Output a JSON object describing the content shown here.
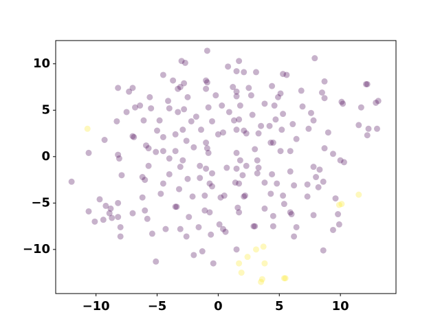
{
  "chart_data": {
    "type": "scatter",
    "xlim": [
      -13.3,
      14.55
    ],
    "ylim": [
      -14.75,
      12.5
    ],
    "xticks": [
      {
        "value": -10,
        "label": "−10"
      },
      {
        "value": -5,
        "label": "−5"
      },
      0,
      5,
      10
    ],
    "yticks": [
      {
        "value": -10,
        "label": "−10"
      },
      {
        "value": -5,
        "label": "−5"
      },
      0,
      5,
      10
    ],
    "grid": false,
    "alpha": 0.3,
    "series": [
      {
        "color": "#440154",
        "x": [
          -0.9,
          1.7,
          0.8,
          -3.0,
          -2.7,
          7.9,
          1.5,
          2.1,
          3.1,
          5.3,
          5.6,
          -4.5,
          -1.0,
          -3.7,
          8.7,
          -8.2,
          -7.0,
          -7.3,
          -2.8,
          -3.3,
          -0.9,
          -1.0,
          1.2,
          1.5,
          2.5,
          4.4,
          6.8,
          8.5,
          -5.6,
          -4.1,
          -2.5,
          -0.2,
          1.5,
          2.7,
          5.1,
          4.9,
          10.1,
          10.2,
          13.1,
          12.9,
          8.7,
          12.2,
          12.1,
          -3.1,
          -6.4,
          -6.8,
          -5.5,
          -4.0,
          -2.8,
          -3.3,
          -0.8,
          0.3,
          1.8,
          3.8,
          4.6,
          6.9,
          11.7,
          -7.5,
          -1.8,
          0.9,
          2.8,
          5.3,
          7.6,
          -8.3,
          -6.1,
          -4.8,
          -2.2,
          -0.5,
          1.3,
          1.7,
          4.7,
          7.8,
          11.5,
          -9.3,
          -7.0,
          -6.9,
          -5.0,
          -3.5,
          -2.9,
          -1.4,
          0.0,
          0.4,
          1.5,
          2.1,
          2.3,
          3.5,
          4.2,
          5.2,
          6.1,
          7.4,
          12.3,
          13.0,
          12.2,
          -4.5,
          -2.6,
          -1.0,
          3.3,
          4.3,
          4.5,
          6.4,
          9.0,
          -5.9,
          -10.6,
          -8.2,
          -8.1,
          -5.7,
          -5.1,
          -4.5,
          -3.5,
          -2.0,
          -0.9,
          1.5,
          3.0,
          5.1,
          5.9,
          8.7,
          9.4,
          10.0,
          10.3,
          -0.8,
          -4.0,
          -2.9,
          1.8,
          3.2,
          -5.7,
          -3.1,
          -1.5,
          -1.0,
          0.7,
          1.5,
          2.3,
          3.3,
          7.8,
          8.3,
          -7.9,
          -6.2,
          -6.0,
          -4.0,
          -2.5,
          -1.5,
          -0.5,
          2.0,
          3.2,
          4.4,
          5.9,
          8.0,
          -12.0,
          -0.7,
          -0.5,
          1.4,
          1.7,
          3.8,
          4.8,
          6.2,
          7.3,
          8.6,
          8.2,
          -3.2,
          -4.5,
          -9.7,
          -9.2,
          -8.8,
          -8.2,
          -6.2,
          -4.7,
          -2.1,
          -1.1,
          0.2,
          0.5,
          2.2,
          2.1,
          4.3,
          5.3,
          7.3,
          9.6,
          -3.5,
          -3.4,
          -1.1,
          -0.7,
          1.6,
          3.8,
          5.4,
          5.9,
          6.0,
          -10.6,
          -8.9,
          -8.7,
          -8.2,
          -7.0,
          -6.0,
          -2.4,
          1.7,
          4.5,
          7.8,
          9.8,
          -10.1,
          -9.4,
          -8.0,
          -5.8,
          -4.3,
          -3.1,
          -1.6,
          0.1,
          0.4,
          0.6,
          2.9,
          3.0,
          4.5,
          6.4,
          9.4,
          9.9,
          -8.0,
          -5.4,
          -2.6,
          -0.6,
          6.2,
          -1.3,
          -2.0,
          -0.4,
          1.5,
          8.6,
          -5.1
        ],
        "values": [
          11.4,
          10.3,
          9.7,
          10.3,
          10.1,
          10.6,
          9.2,
          9.1,
          9.1,
          8.9,
          8.8,
          8.8,
          8.2,
          8.2,
          8.1,
          7.4,
          7.4,
          7.0,
          7.9,
          7.3,
          8.0,
          7.3,
          7.5,
          7.0,
          7.4,
          7.6,
          7.1,
          6.9,
          6.4,
          6.0,
          6.4,
          6.6,
          6.5,
          6.6,
          6.8,
          6.4,
          5.9,
          5.7,
          6.0,
          5.8,
          6.3,
          7.8,
          7.8,
          7.5,
          5.5,
          5.3,
          5.2,
          5.2,
          5.1,
          4.8,
          5.3,
          5.5,
          5.5,
          5.7,
          5.5,
          5.4,
          5.3,
          4.8,
          4.3,
          4.8,
          4.5,
          4.6,
          4.7,
          3.8,
          3.9,
          3.9,
          3.8,
          3.8,
          3.9,
          4.0,
          4.0,
          3.9,
          3.4,
          1.8,
          2.2,
          2.1,
          2.8,
          2.4,
          2.9,
          2.9,
          2.4,
          2.6,
          2.9,
          2.8,
          2.5,
          3.3,
          3.3,
          2.9,
          3.5,
          3.0,
          3.0,
          3.0,
          2.3,
          2.1,
          1.7,
          1.5,
          2.5,
          1.5,
          1.5,
          1.9,
          2.6,
          1.2,
          0.4,
          0.2,
          -0.2,
          0.9,
          0.5,
          0.6,
          0.6,
          1.0,
          0.9,
          0.4,
          0.8,
          0.6,
          0.6,
          0.9,
          0.3,
          -0.4,
          -0.6,
          0.4,
          -0.2,
          -0.4,
          -0.4,
          -0.4,
          -1.0,
          -1.1,
          -1.0,
          -1.3,
          -1.2,
          -1.3,
          -1.0,
          -1.2,
          -1.1,
          -1.4,
          -2.0,
          -2.2,
          -2.5,
          -1.9,
          -2.4,
          -2.3,
          -1.8,
          -2.0,
          -1.8,
          -1.9,
          -1.6,
          -2.2,
          -2.7,
          -2.9,
          -3.2,
          -2.8,
          -2.9,
          -2.8,
          -2.9,
          -3.1,
          -3.0,
          -2.7,
          -3.3,
          -3.5,
          -2.9,
          -4.6,
          -5.3,
          -5.6,
          -5.0,
          -4.4,
          -4.0,
          -4.3,
          -4.2,
          -4.4,
          -4.2,
          -4.2,
          -4.3,
          -4.0,
          -4.2,
          -4.3,
          -4.5,
          -5.4,
          -5.4,
          -5.8,
          -6.0,
          -5.5,
          -5.6,
          -5.1,
          -6.0,
          -6.2,
          -5.9,
          -6.1,
          -6.6,
          -6.5,
          -6.1,
          -5.8,
          -6.5,
          -6.0,
          -6.4,
          -6.3,
          -6.2,
          -7.0,
          -6.8,
          -7.6,
          -6.7,
          -7.8,
          -7.8,
          -7.6,
          -7.3,
          -7.8,
          -8.1,
          -7.5,
          -7.5,
          -7.5,
          -7.6,
          -7.9,
          -7.3,
          -8.6,
          -8.3,
          -8.6,
          -8.4,
          -8.6,
          -10.2,
          -10.6,
          -11.5,
          -10.0,
          -10.1,
          -11.3
        ]
      },
      {
        "color": "#fde725",
        "x": [
          -10.7,
          10.1,
          9.9,
          11.5,
          1.7,
          1.9,
          2.4,
          3.1,
          3.7,
          3.8,
          3.6,
          3.5,
          5.4,
          5.5
        ],
        "values": [
          3.0,
          -5.1,
          -5.2,
          -4.1,
          -11.5,
          -12.5,
          -10.8,
          -10.0,
          -9.7,
          -11.5,
          -13.2,
          -13.5,
          -13.1,
          -13.1
        ]
      }
    ]
  }
}
